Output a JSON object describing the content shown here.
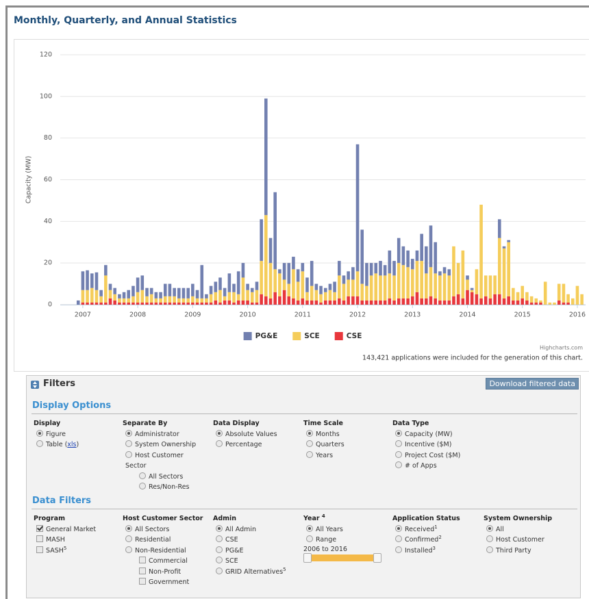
{
  "header": {
    "title": "Monthly, Quarterly, and Annual Statistics"
  },
  "chart_data": {
    "type": "stacked_bar",
    "ylabel": "Capacity (MW)",
    "x": [
      2006.917,
      2007,
      2007.083,
      2007.167,
      2007.25,
      2007.333,
      2007.417,
      2007.5,
      2007.583,
      2007.667,
      2007.75,
      2007.833,
      2007.917,
      2008,
      2008.083,
      2008.167,
      2008.25,
      2008.333,
      2008.417,
      2008.5,
      2008.583,
      2008.667,
      2008.75,
      2008.833,
      2008.917,
      2009,
      2009.083,
      2009.167,
      2009.25,
      2009.333,
      2009.417,
      2009.5,
      2009.583,
      2009.667,
      2009.75,
      2009.833,
      2009.917,
      2010,
      2010.083,
      2010.167,
      2010.25,
      2010.333,
      2010.417,
      2010.5,
      2010.583,
      2010.667,
      2010.75,
      2010.833,
      2010.917,
      2011,
      2011.083,
      2011.167,
      2011.25,
      2011.333,
      2011.417,
      2011.5,
      2011.583,
      2011.667,
      2011.75,
      2011.833,
      2011.917,
      2012,
      2012.083,
      2012.167,
      2012.25,
      2012.333,
      2012.417,
      2012.5,
      2012.583,
      2012.667,
      2012.75,
      2012.833,
      2012.917,
      2013,
      2013.083,
      2013.167,
      2013.25,
      2013.333,
      2013.417,
      2013.5,
      2013.583,
      2013.667,
      2013.75,
      2013.833,
      2013.917,
      2014,
      2014.083,
      2014.167,
      2014.25,
      2014.333,
      2014.417,
      2014.5,
      2014.583,
      2014.667,
      2014.75,
      2014.833,
      2014.917,
      2015,
      2015.083,
      2015.167,
      2015.25,
      2015.333,
      2015.417,
      2015.5,
      2015.583,
      2015.667,
      2015.75,
      2015.833,
      2015.917,
      2016,
      2016.083
    ],
    "series": [
      {
        "name": "PG&E",
        "color": "#7280b0",
        "values": [
          2,
          9,
          9.5,
          7,
          8.5,
          3,
          5,
          3,
          3,
          2,
          3,
          4,
          5,
          7,
          7,
          4,
          3,
          3,
          3,
          6,
          6,
          4,
          5,
          5,
          5,
          6,
          4,
          16,
          2,
          4,
          5,
          6,
          4,
          9,
          4,
          11,
          7,
          3,
          2,
          4,
          20,
          56,
          12,
          37,
          2,
          8,
          10,
          6,
          6,
          4,
          7,
          12,
          3,
          4,
          2,
          3,
          5,
          7,
          4,
          4,
          6,
          61,
          26,
          11,
          6,
          5,
          7,
          5,
          11,
          7,
          12,
          9,
          8,
          5,
          5,
          13,
          13,
          20,
          15,
          2,
          3,
          3,
          0,
          0,
          0,
          2,
          1,
          0,
          0,
          0,
          0,
          0,
          9,
          1,
          1,
          0,
          0,
          0,
          0,
          0,
          0,
          0,
          0,
          0,
          0,
          0,
          0,
          0,
          0,
          0,
          0
        ]
      },
      {
        "name": "SCE",
        "color": "#f5cd5b",
        "values": [
          0,
          6,
          6,
          7,
          6,
          3,
          13,
          4,
          3,
          2,
          2,
          2,
          3,
          5,
          6,
          3,
          4,
          2,
          2,
          3,
          3,
          3,
          2,
          2,
          2,
          3,
          2,
          2,
          2,
          4,
          4,
          6,
          2,
          4,
          5,
          3,
          11,
          5,
          5,
          6,
          16,
          39,
          17,
          11,
          11,
          5,
          6,
          14,
          9,
          13,
          4,
          7,
          5,
          4,
          4,
          5,
          4,
          11,
          8,
          8,
          8,
          12,
          8,
          7,
          12,
          13,
          12,
          12,
          12,
          12,
          17,
          16,
          15,
          13,
          15,
          18,
          12,
          14,
          12,
          12,
          13,
          12,
          24,
          15,
          23,
          5,
          1,
          12,
          45,
          10,
          11,
          9,
          27,
          24,
          26,
          6,
          4,
          6,
          4,
          3,
          2,
          1,
          11,
          1,
          1,
          8,
          9,
          4,
          3,
          9,
          5
        ]
      },
      {
        "name": "CSE",
        "color": "#e8373c",
        "values": [
          0,
          1,
          1,
          1,
          1,
          1,
          1,
          3,
          2,
          1,
          1,
          1,
          1,
          1,
          1,
          1,
          1,
          1,
          1,
          1,
          1,
          1,
          1,
          1,
          1,
          1,
          1,
          1,
          1,
          1,
          2,
          1,
          2,
          2,
          1,
          2,
          2,
          2,
          1,
          1,
          5,
          4,
          3,
          6,
          4,
          7,
          4,
          3,
          2,
          3,
          2,
          2,
          2,
          1,
          2,
          2,
          2,
          3,
          2,
          4,
          4,
          4,
          2,
          2,
          2,
          2,
          2,
          2,
          3,
          2,
          3,
          3,
          3,
          4,
          6,
          3,
          3,
          4,
          3,
          2,
          2,
          2,
          4,
          5,
          3,
          7,
          6,
          5,
          3,
          4,
          3,
          5,
          5,
          3,
          4,
          2,
          2,
          3,
          2,
          1,
          1,
          1,
          0,
          0,
          0,
          2,
          1,
          1,
          0,
          0,
          0
        ]
      }
    ],
    "xlim": [
      2006.59,
      2016.15
    ],
    "xticks": [
      2007,
      2008,
      2009,
      2010,
      2011,
      2012,
      2013,
      2014,
      2015,
      2016
    ],
    "ylim": [
      0,
      120
    ],
    "yticks": [
      0,
      20,
      40,
      60,
      80,
      100,
      120
    ],
    "grid": true,
    "credits": "Highcharts.com",
    "note": "143,421 applications were included for the generation of this chart."
  },
  "filters": {
    "title": "Filters",
    "download": "Download filtered data",
    "display_options": {
      "title": "Display Options",
      "groups": [
        {
          "label": "Display",
          "type": "radio",
          "selected": 0,
          "options": [
            "Figure",
            {
              "prefix": "Table (",
              "link": "xls",
              "suffix": ")"
            }
          ]
        },
        {
          "label": "Separate By",
          "type": "radio",
          "selected": 0,
          "options": [
            "Administrator",
            "System Ownership",
            {
              "label": "Host Customer Sector",
              "children": {
                "type": "radio",
                "options": [
                  "All Sectors",
                  "Res/Non-Res"
                ]
              }
            }
          ]
        },
        {
          "label": "Data Display",
          "type": "radio",
          "selected": 0,
          "options": [
            "Absolute Values",
            "Percentage"
          ]
        },
        {
          "label": "Time Scale",
          "type": "radio",
          "selected": 0,
          "options": [
            "Months",
            "Quarters",
            "Years"
          ]
        },
        {
          "label": "Data Type",
          "type": "radio",
          "selected": 0,
          "options": [
            "Capacity (MW)",
            "Incentive ($M)",
            "Project Cost ($M)",
            "# of Apps"
          ]
        }
      ]
    },
    "data_filters": {
      "title": "Data Filters",
      "groups": [
        {
          "label": "Program",
          "type": "checkbox",
          "checked": [
            0
          ],
          "options": [
            "General Market",
            "MASH",
            {
              "label": "SASH",
              "sup": "5"
            }
          ]
        },
        {
          "label": "Host Customer Sector",
          "type": "radio",
          "selected": 0,
          "options": [
            "All Sectors",
            "Residential",
            {
              "label": "Non-Residential",
              "children": {
                "type": "checkbox",
                "options": [
                  "Commercial",
                  "Non-Profit",
                  "Government"
                ]
              }
            }
          ]
        },
        {
          "label": "Admin",
          "type": "radio",
          "selected": 0,
          "options": [
            "All Admin",
            "CSE",
            "PG&E",
            "SCE",
            {
              "label": "GRID Alternatives",
              "sup": "5"
            }
          ]
        },
        {
          "label": "Year",
          "sup": "4",
          "type": "radio",
          "selected": 0,
          "options": [
            "All Years",
            "Range"
          ],
          "range_label": "2006 to 2016"
        },
        {
          "label": "Application Status",
          "type": "radio",
          "selected": 0,
          "options": [
            {
              "label": "Received",
              "sup": "1"
            },
            {
              "label": "Confirmed",
              "sup": "2"
            },
            {
              "label": "Installed",
              "sup": "3"
            }
          ]
        },
        {
          "label": "System Ownership",
          "type": "radio",
          "selected": 0,
          "options": [
            "All",
            "Host Customer",
            "Third Party"
          ]
        }
      ]
    }
  }
}
